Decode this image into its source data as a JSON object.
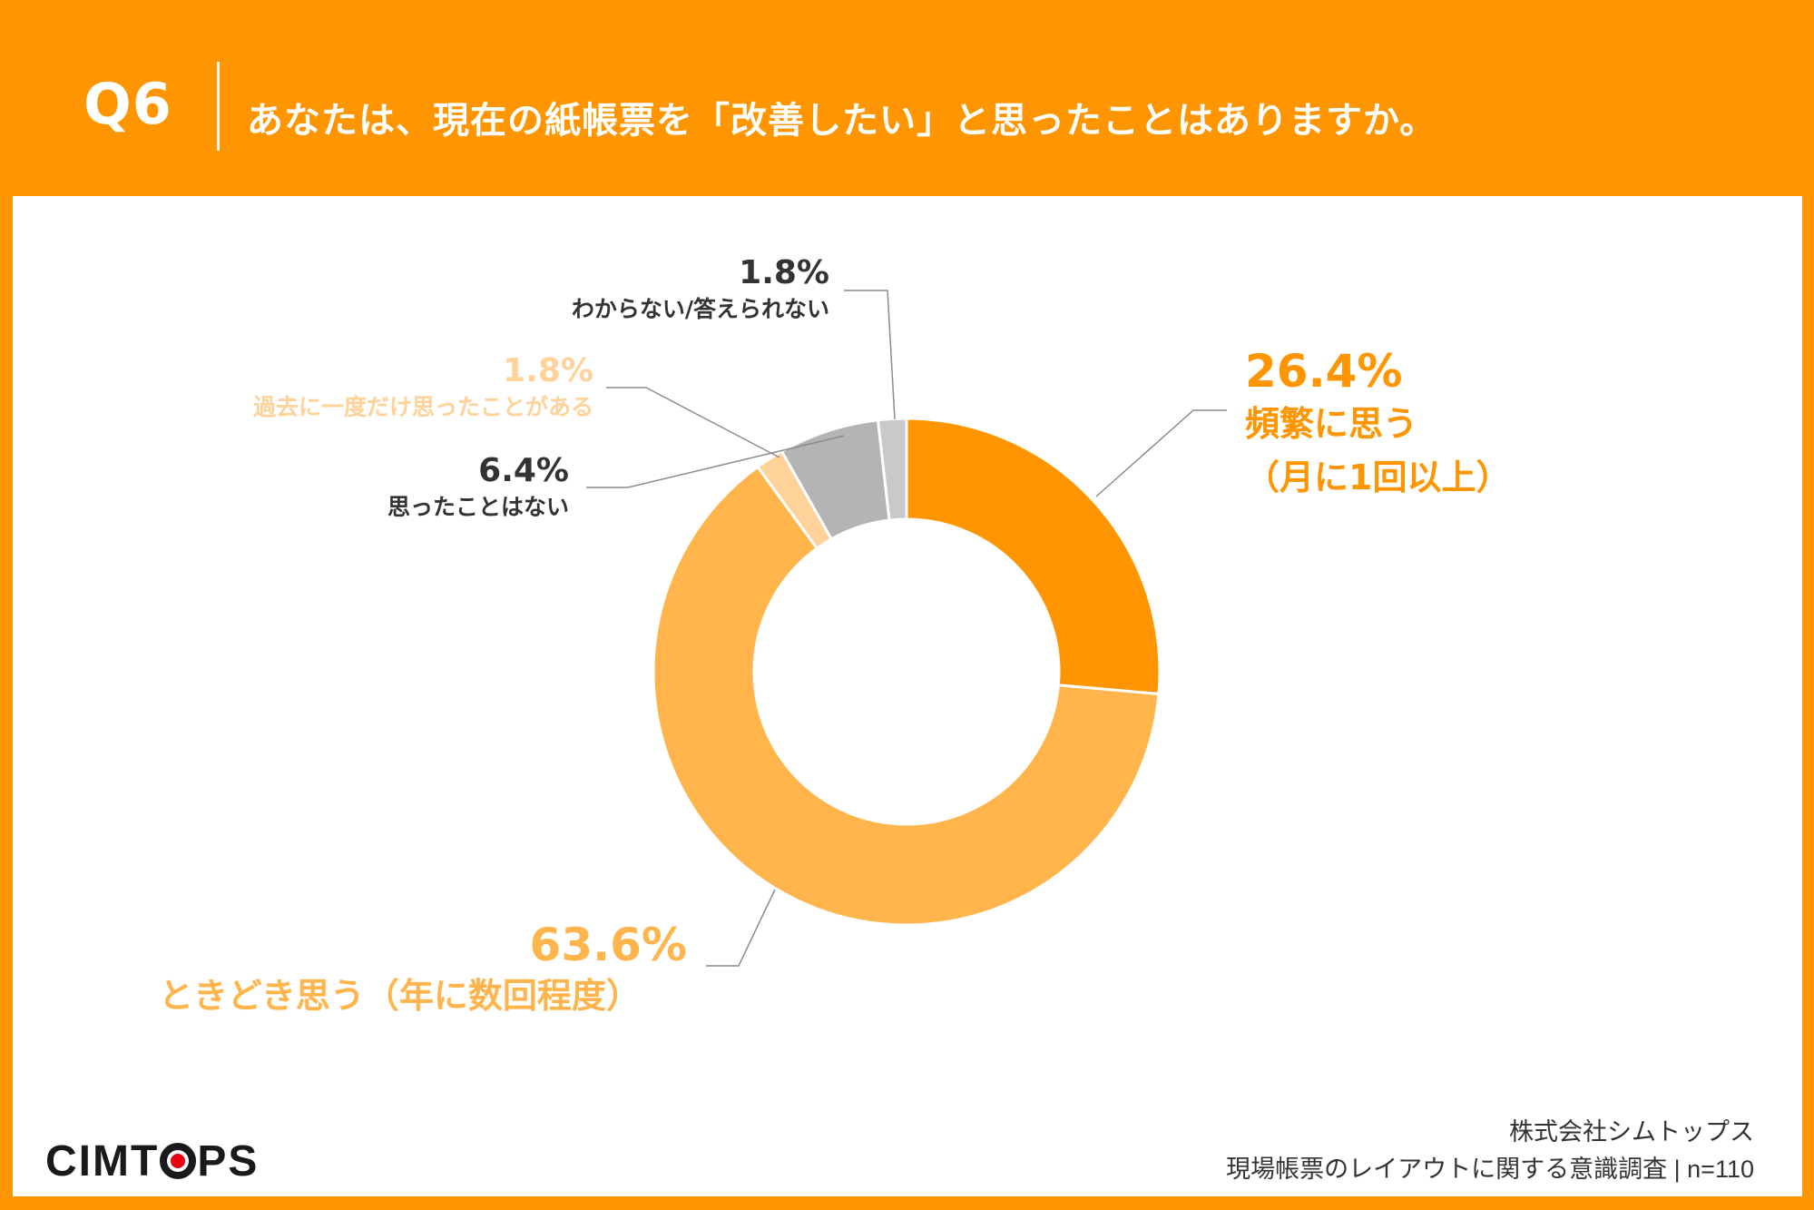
{
  "header": {
    "question_number": "Q6",
    "question_text": "あなたは、現在の紙帳票を「改善したい」と思ったことはありますか。"
  },
  "chart_data": {
    "type": "pie",
    "donut": true,
    "slices": [
      {
        "label": "頻繁に思う（月に1回以上）",
        "label_line1": "頻繁に思う",
        "label_line2": "（月に1回以上）",
        "value": 26.4,
        "value_label": "26.4%",
        "color": "#ff9500"
      },
      {
        "label": "ときどき思う（年に数回程度）",
        "value": 63.6,
        "value_label": "63.6%",
        "color": "#ffb54c"
      },
      {
        "label": "過去に一度だけ思ったことがある",
        "value": 1.8,
        "value_label": "1.8%",
        "color": "#ffd29a"
      },
      {
        "label": "思ったことはない",
        "value": 6.4,
        "value_label": "6.4%",
        "color": "#b4b4b4"
      },
      {
        "label": "わからない/答えられない",
        "value": 1.8,
        "value_label": "1.8%",
        "color": "#c9c9c9"
      }
    ]
  },
  "colors": {
    "background": "#ff9500",
    "panel": "#ffffff",
    "dark_text": "#333333",
    "leader_line": "#8c8c8c"
  },
  "footer": {
    "logo_left": "CIMT",
    "logo_right": "PS",
    "company": "株式会社シムトップス",
    "survey": "現場帳票のレイアウトに関する意識調査 | n=110"
  }
}
